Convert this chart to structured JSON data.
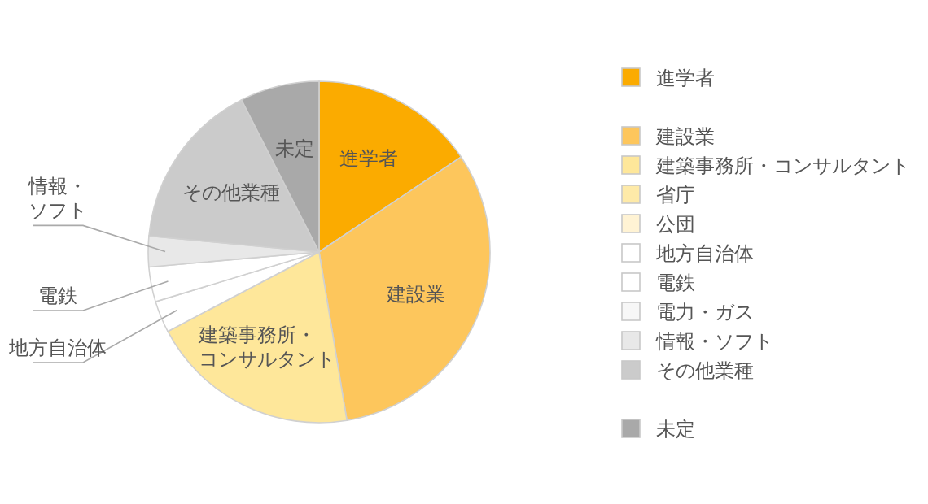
{
  "chart_data": {
    "type": "pie",
    "categories": [
      "進学者",
      "建設業",
      "建築事務所・コンサルタント",
      "省庁",
      "公団",
      "地方自治体",
      "電鉄",
      "電力・ガス",
      "情報・ソフト",
      "その他業種",
      "未定"
    ],
    "values": [
      15.6,
      31.8,
      19.9,
      0,
      0,
      3.0,
      3.3,
      0,
      2.9,
      16.0,
      7.5
    ],
    "colors": [
      "#fbab00",
      "#fdc65c",
      "#fee79a",
      "#feeaa8",
      "#fff3d4",
      "#ffffff",
      "#ffffff",
      "#f7f7f7",
      "#e8e8e8",
      "#cbcbcb",
      "#a9a9a9"
    ],
    "legend": "right"
  }
}
